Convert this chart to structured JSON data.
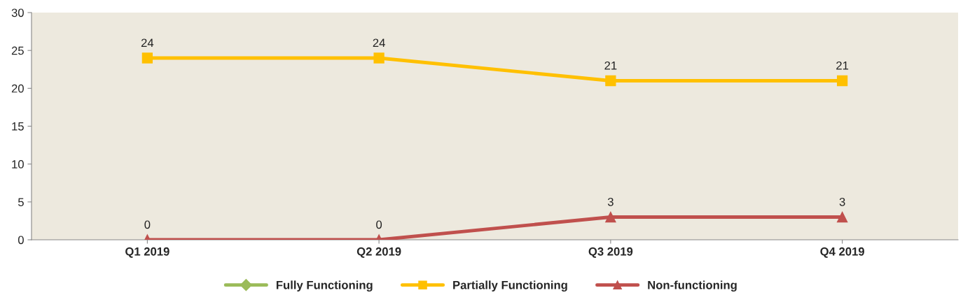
{
  "chart_data": {
    "type": "line",
    "categories": [
      "Q1 2019",
      "Q2 2019",
      "Q3 2019",
      "Q4 2019"
    ],
    "series": [
      {
        "name": "Fully Functioning",
        "color": "#9bbb59",
        "marker": "diamond",
        "values": [
          null,
          null,
          null,
          null
        ]
      },
      {
        "name": "Partially Functioning",
        "color": "#ffc000",
        "marker": "square",
        "values": [
          24,
          24,
          21,
          21
        ]
      },
      {
        "name": "Non-functioning",
        "color": "#c0504d",
        "marker": "triangle",
        "values": [
          0,
          0,
          3,
          3
        ]
      }
    ],
    "ylim": [
      0,
      30
    ],
    "yticks": [
      0,
      5,
      10,
      15,
      20,
      25,
      30
    ],
    "data_labels": true,
    "grid": false,
    "legend": "bottom",
    "line_style": "solid"
  }
}
